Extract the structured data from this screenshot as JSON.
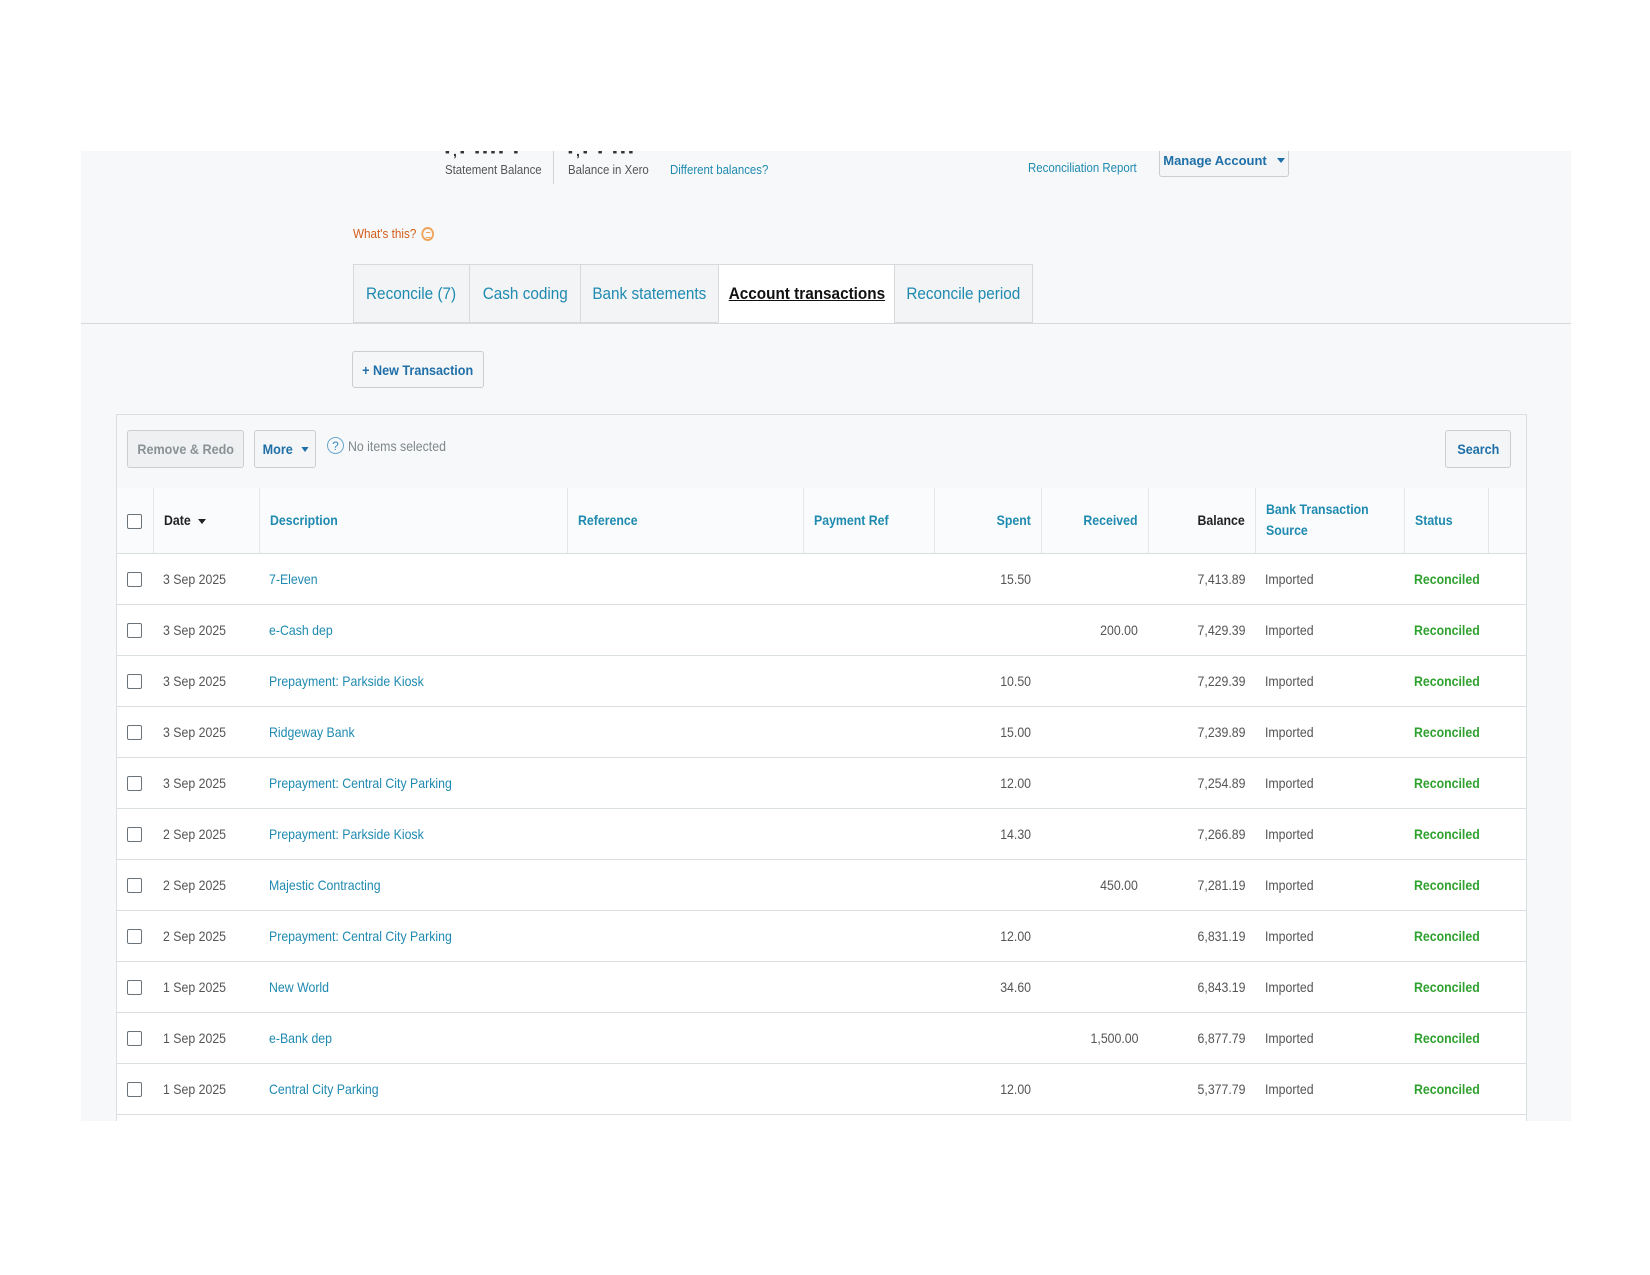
{
  "header": {
    "statement_balance_cut": "▪,▪ ▪▪▪▪ ▪",
    "statement_balance_label": "Statement Balance",
    "xero_balance_cut": "▪,▪ ▪ ▪▪▪",
    "xero_balance_label": "Balance in Xero",
    "different_balances": "Different balances?",
    "reconciliation_report": "Reconciliation Report",
    "manage_account": "Manage Account",
    "whats_this": "What's this?"
  },
  "tabs": [
    {
      "label": "Reconcile (7)",
      "active": false
    },
    {
      "label": "Cash coding",
      "active": false
    },
    {
      "label": "Bank statements",
      "active": false
    },
    {
      "label": "Account transactions",
      "active": true
    },
    {
      "label": "Reconcile period",
      "active": false
    }
  ],
  "actions": {
    "new_transaction": "+ New Transaction",
    "remove_redo": "Remove & Redo",
    "more": "More",
    "no_items": "No items selected",
    "help_glyph": "?",
    "search": "Search"
  },
  "table": {
    "columns": {
      "date": "Date",
      "description": "Description",
      "reference": "Reference",
      "payment_ref": "Payment Ref",
      "spent": "Spent",
      "received": "Received",
      "balance": "Balance",
      "source": "Bank Transaction Source",
      "status": "Status"
    },
    "rows": [
      {
        "date": "3 Sep 2025",
        "description": "7-Eleven",
        "reference": "",
        "payment_ref": "",
        "spent": "15.50",
        "received": "",
        "balance": "7,413.89",
        "source": "Imported",
        "status": "Reconciled"
      },
      {
        "date": "3 Sep 2025",
        "description": "e-Cash dep",
        "reference": "",
        "payment_ref": "",
        "spent": "",
        "received": "200.00",
        "balance": "7,429.39",
        "source": "Imported",
        "status": "Reconciled"
      },
      {
        "date": "3 Sep 2025",
        "description": "Prepayment: Parkside Kiosk",
        "reference": "",
        "payment_ref": "",
        "spent": "10.50",
        "received": "",
        "balance": "7,229.39",
        "source": "Imported",
        "status": "Reconciled"
      },
      {
        "date": "3 Sep 2025",
        "description": "Ridgeway Bank",
        "reference": "",
        "payment_ref": "",
        "spent": "15.00",
        "received": "",
        "balance": "7,239.89",
        "source": "Imported",
        "status": "Reconciled"
      },
      {
        "date": "3 Sep 2025",
        "description": "Prepayment: Central City Parking",
        "reference": "",
        "payment_ref": "",
        "spent": "12.00",
        "received": "",
        "balance": "7,254.89",
        "source": "Imported",
        "status": "Reconciled"
      },
      {
        "date": "2 Sep 2025",
        "description": "Prepayment: Parkside Kiosk",
        "reference": "",
        "payment_ref": "",
        "spent": "14.30",
        "received": "",
        "balance": "7,266.89",
        "source": "Imported",
        "status": "Reconciled"
      },
      {
        "date": "2 Sep 2025",
        "description": "Majestic Contracting",
        "reference": "",
        "payment_ref": "",
        "spent": "",
        "received": "450.00",
        "balance": "7,281.19",
        "source": "Imported",
        "status": "Reconciled"
      },
      {
        "date": "2 Sep 2025",
        "description": "Prepayment: Central City Parking",
        "reference": "",
        "payment_ref": "",
        "spent": "12.00",
        "received": "",
        "balance": "6,831.19",
        "source": "Imported",
        "status": "Reconciled"
      },
      {
        "date": "1 Sep 2025",
        "description": "New World",
        "reference": "",
        "payment_ref": "",
        "spent": "34.60",
        "received": "",
        "balance": "6,843.19",
        "source": "Imported",
        "status": "Reconciled"
      },
      {
        "date": "1 Sep 2025",
        "description": "e-Bank dep",
        "reference": "",
        "payment_ref": "",
        "spent": "",
        "received": "1,500.00",
        "balance": "6,877.79",
        "source": "Imported",
        "status": "Reconciled"
      },
      {
        "date": "1 Sep 2025",
        "description": "Central City Parking",
        "reference": "",
        "payment_ref": "",
        "spent": "12.00",
        "received": "",
        "balance": "5,377.79",
        "source": "Imported",
        "status": "Reconciled"
      }
    ]
  },
  "colors": {
    "link": "#1f8ab0",
    "reconciled": "#2fa12f",
    "whats_this": "#d35d1a"
  }
}
